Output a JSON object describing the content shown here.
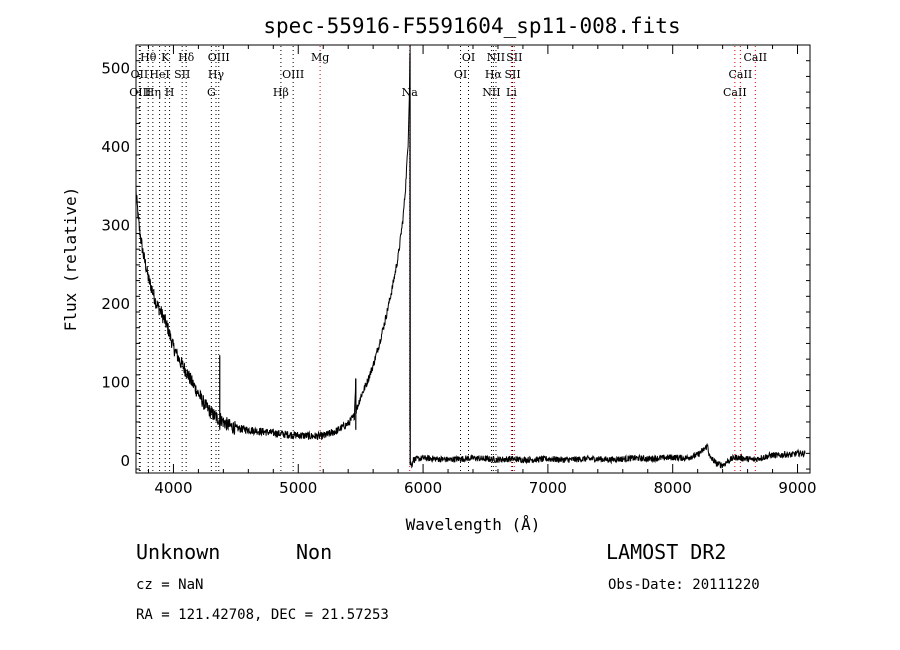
{
  "chart_data": {
    "type": "line",
    "title": "spec-55916-F5591604_sp11-008.fits",
    "xlabel": "Wavelength (Å)",
    "ylabel": "Flux (relative)",
    "xlim": [
      3700,
      9100
    ],
    "ylim": [
      -15,
      530
    ],
    "x_ticks": [
      4000,
      5000,
      6000,
      7000,
      8000,
      9000
    ],
    "y_ticks": [
      0,
      100,
      200,
      300,
      400,
      500
    ],
    "grid": false,
    "series": [
      {
        "x": [
          3700,
          3720,
          3740,
          3760,
          3780,
          3800,
          3830,
          3860,
          3900,
          3950,
          4000,
          4050,
          4100,
          4150,
          4200,
          4250,
          4300,
          4350,
          4370,
          4371,
          4372,
          4400,
          4450,
          4500,
          4600,
          4700,
          4800,
          4900,
          5000,
          5100,
          5200,
          5300,
          5400,
          5450,
          5460,
          5461,
          5462,
          5480,
          5500,
          5550,
          5600,
          5650,
          5700,
          5750,
          5800,
          5840,
          5860,
          5880,
          5890,
          5895,
          5896,
          5900,
          5910,
          5920,
          6000,
          6100,
          6200,
          6300,
          6400,
          6500,
          6600,
          6700,
          6800,
          6900,
          7000,
          7100,
          7200,
          7300,
          7400,
          7500,
          7600,
          7700,
          7800,
          7900,
          8000,
          8100,
          8200,
          8250,
          8280,
          8290,
          8300,
          8320,
          8350,
          8400,
          8450,
          8500,
          8550,
          8600,
          8650,
          8700,
          8750,
          8800,
          8850,
          8900,
          8950,
          9000
        ],
        "y": [
          345,
          305,
          282,
          262,
          248,
          232,
          218,
          202,
          190,
          172,
          145,
          128,
          115,
          100,
          86,
          72,
          62,
          55,
          52,
          135,
          55,
          50,
          45,
          42,
          40,
          38,
          36,
          34,
          33,
          32,
          32,
          38,
          48,
          58,
          105,
          62,
          64,
          72,
          82,
          100,
          122,
          150,
          182,
          218,
          260,
          310,
          350,
          405,
          465,
          520,
          5,
          -3,
          -5,
          2,
          4,
          3,
          2,
          3,
          4,
          3,
          2,
          3,
          2,
          2,
          3,
          2,
          2,
          3,
          3,
          2,
          3,
          4,
          3,
          4,
          5,
          4,
          8,
          15,
          20,
          10,
          4,
          2,
          -3,
          -5,
          1,
          5,
          4,
          3,
          2,
          4,
          6,
          8,
          7,
          9,
          8,
          10
        ]
      }
    ]
  },
  "spectral_lines": [
    {
      "label": "Hθ",
      "row": 0,
      "x": 3798,
      "color": "black"
    },
    {
      "label": "K",
      "row": 0,
      "x": 3934,
      "color": "black"
    },
    {
      "label": "Hδ",
      "row": 0,
      "x": 4102,
      "color": "black"
    },
    {
      "label": "OIII",
      "row": 0,
      "x": 4363,
      "color": "black"
    },
    {
      "label": "Mg",
      "row": 0,
      "x": 5175,
      "color": "red"
    },
    {
      "label": "OI",
      "row": 0,
      "x": 6364,
      "color": "black"
    },
    {
      "label": "NII",
      "row": 0,
      "x": 6584,
      "color": "black"
    },
    {
      "label": "SII",
      "row": 0,
      "x": 6731,
      "color": "red"
    },
    {
      "label": "CaII",
      "row": 0,
      "x": 8662,
      "color": "red"
    },
    {
      "label": "OII",
      "row": 1,
      "x": 3727,
      "color": "black"
    },
    {
      "label": "HeI",
      "row": 1,
      "x": 3889,
      "color": "black"
    },
    {
      "label": "SII",
      "row": 1,
      "x": 4070,
      "color": "black"
    },
    {
      "label": "Hγ",
      "row": 1,
      "x": 4341,
      "color": "black"
    },
    {
      "label": "OIII",
      "row": 1,
      "x": 4959,
      "color": "black"
    },
    {
      "label": "OI",
      "row": 1,
      "x": 6300,
      "color": "black"
    },
    {
      "label": "Hα",
      "row": 1,
      "x": 6563,
      "color": "black"
    },
    {
      "label": "SII",
      "row": 1,
      "x": 6717,
      "color": "black"
    },
    {
      "label": "CaII",
      "row": 1,
      "x": 8542,
      "color": "red"
    },
    {
      "label": "OIII",
      "row": 2,
      "x": 3734,
      "color": "black"
    },
    {
      "label": "Hη",
      "row": 2,
      "x": 3835,
      "color": "black"
    },
    {
      "label": "H",
      "row": 2,
      "x": 3969,
      "color": "black"
    },
    {
      "label": "G",
      "row": 2,
      "x": 4304,
      "color": "black"
    },
    {
      "label": "Hβ",
      "row": 2,
      "x": 4861,
      "color": "black"
    },
    {
      "label": "Na",
      "row": 2,
      "x": 5893,
      "color": "red"
    },
    {
      "label": "NII",
      "row": 2,
      "x": 6548,
      "color": "black"
    },
    {
      "label": "Li",
      "row": 2,
      "x": 6708,
      "color": "red"
    },
    {
      "label": "CaII",
      "row": 2,
      "x": 8498,
      "color": "red"
    }
  ],
  "footer": {
    "class_label": "Unknown",
    "subclass_label": "Non",
    "survey": "LAMOST DR2",
    "cz": "cz = NaN",
    "obs_date": "Obs-Date: 20111220",
    "coords": "RA = 121.42708, DEC =  21.57253"
  }
}
